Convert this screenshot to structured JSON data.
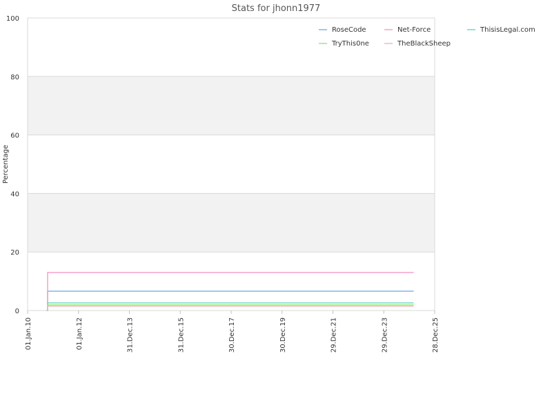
{
  "chart_data": {
    "type": "line",
    "title": "Stats for jhonn1977",
    "xlabel": "",
    "ylabel": "Percentage",
    "x_ticks": [
      "01.Jan.10",
      "01.Jan.12",
      "31.Dec.13",
      "31.Dec.15",
      "30.Dec.17",
      "30.Dec.19",
      "29.Dec.21",
      "29.Dec.23",
      "28.Dec.25"
    ],
    "xlim": [
      "2010-01-01",
      "2025-12-28"
    ],
    "ylim": [
      0,
      100
    ],
    "y_ticks": [
      0,
      20,
      40,
      60,
      80,
      100
    ],
    "grid": true,
    "legend_position": "top-right",
    "series": [
      {
        "name": "RoseCode",
        "color": "#7cb5ec",
        "x": [
          "2010-10-01",
          "2010-10-15",
          "2025-03-01"
        ],
        "values": [
          0,
          6.6,
          6.6
        ]
      },
      {
        "name": "Net-Force",
        "color": "#f7a1c9",
        "x": [
          "2010-10-01",
          "2010-10-15",
          "2025-03-01"
        ],
        "values": [
          0,
          13,
          13
        ]
      },
      {
        "name": "ThisisLegal.com",
        "color": "#76d6c8",
        "x": [
          "2010-10-01",
          "2010-10-15",
          "2025-03-01"
        ],
        "values": [
          0,
          2.6,
          2.6
        ]
      },
      {
        "name": "TryThis0ne",
        "color": "#90ed7d",
        "x": [
          "2010-10-01",
          "2010-10-15",
          "2025-03-01"
        ],
        "values": [
          0,
          1.9,
          1.9
        ]
      },
      {
        "name": "TheBlackSheep",
        "color": "#f2b8b8",
        "x": [
          "2010-10-01",
          "2010-10-15",
          "2025-03-01"
        ],
        "values": [
          0,
          1.5,
          1.5
        ]
      }
    ]
  }
}
